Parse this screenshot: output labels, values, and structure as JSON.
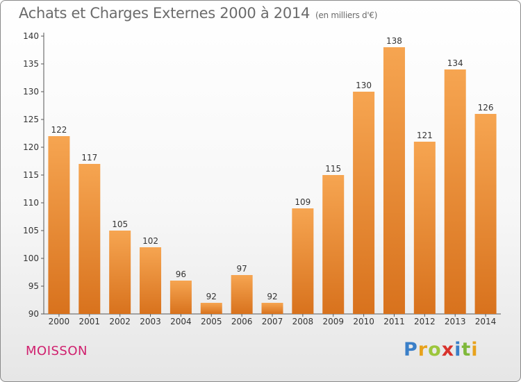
{
  "title": "Achats et Charges Externes 2000 à 2014",
  "unit": "(en milliers d'€)",
  "commune": "MOISSON",
  "brand": "Proxiti",
  "colors": {
    "bar_light": "#f6a551",
    "bar_dark": "#d8721d",
    "axis": "#555555",
    "commune": "#d0206e"
  },
  "chart_data": {
    "type": "bar",
    "categories": [
      "2000",
      "2001",
      "2002",
      "2003",
      "2004",
      "2005",
      "2006",
      "2007",
      "2008",
      "2009",
      "2010",
      "2011",
      "2012",
      "2013",
      "2014"
    ],
    "values": [
      122,
      117,
      105,
      102,
      96,
      92,
      97,
      92,
      109,
      115,
      130,
      138,
      121,
      134,
      126
    ],
    "ylim": [
      90,
      140
    ],
    "yticks": [
      90,
      95,
      100,
      105,
      110,
      115,
      120,
      125,
      130,
      135,
      140
    ],
    "data_labels": true,
    "grid": false
  }
}
